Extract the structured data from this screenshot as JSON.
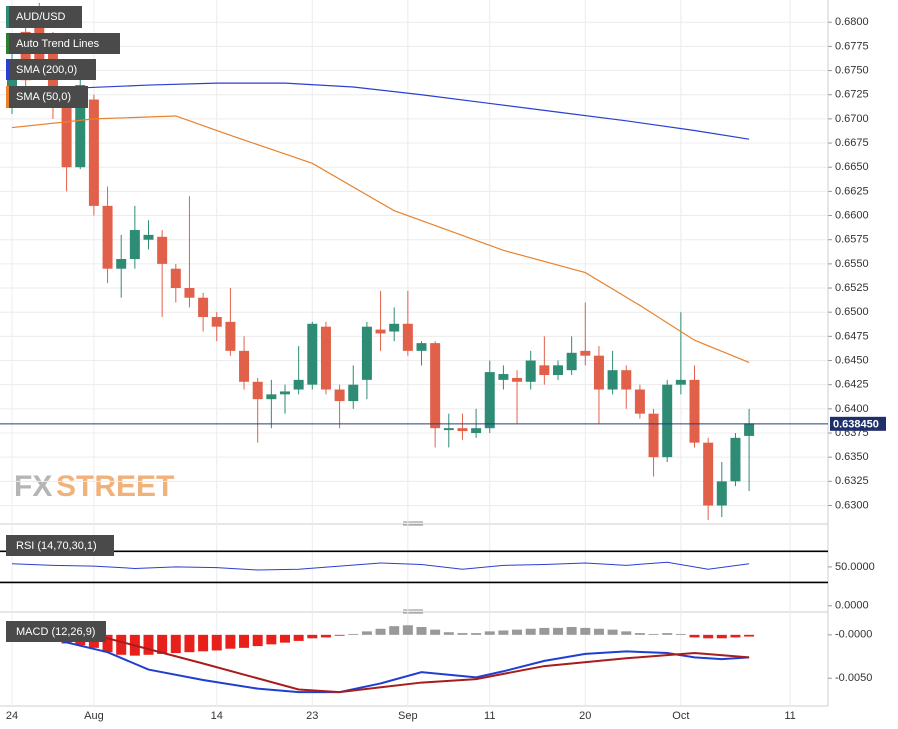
{
  "chart_data": [
    {
      "type": "candlestick",
      "name": "AUD/USD",
      "categories": [
        "24",
        null,
        null,
        null,
        null,
        null,
        "Aug",
        null,
        null,
        null,
        null,
        null,
        null,
        null,
        null,
        "14",
        null,
        null,
        null,
        null,
        null,
        null,
        "23",
        null,
        null,
        null,
        null,
        null,
        null,
        "Sep",
        null,
        null,
        null,
        null,
        null,
        "11",
        null,
        null,
        null,
        null,
        null,
        null,
        "20",
        null,
        null,
        null,
        null,
        null,
        null,
        "Oct",
        null,
        null,
        null,
        null,
        null,
        null,
        null,
        "11"
      ],
      "open": [
        0.6712,
        0.679,
        0.6795,
        0.6775,
        0.6712,
        0.665,
        0.672,
        0.661,
        0.6545,
        0.6555,
        0.6575,
        0.6578,
        0.6545,
        0.6525,
        0.6515,
        0.6495,
        0.649,
        0.646,
        0.6428,
        0.641,
        0.6415,
        0.642,
        0.6425,
        0.6485,
        0.642,
        0.6408,
        0.643,
        0.6482,
        0.648,
        0.6488,
        0.646,
        0.6468,
        0.6378,
        0.638,
        0.6375,
        0.638,
        0.643,
        0.6432,
        0.6428,
        0.6445,
        0.6435,
        0.644,
        0.646,
        0.6455,
        0.642,
        0.644,
        0.642,
        0.6395,
        0.635,
        0.6425,
        0.643,
        0.6365,
        0.63,
        0.6325,
        0.6372,
        null,
        null,
        null
      ],
      "high": [
        0.677,
        0.68,
        0.682,
        0.679,
        0.672,
        0.6745,
        0.6725,
        0.663,
        0.658,
        0.661,
        0.6595,
        0.6585,
        0.655,
        0.662,
        0.652,
        0.65,
        0.6525,
        0.6475,
        0.6432,
        0.643,
        0.6425,
        0.6465,
        0.649,
        0.649,
        0.6425,
        0.6445,
        0.649,
        0.6522,
        0.6505,
        0.6522,
        0.647,
        0.647,
        0.6395,
        0.6395,
        0.64,
        0.645,
        0.6445,
        0.644,
        0.646,
        0.6475,
        0.645,
        0.6475,
        0.651,
        0.6465,
        0.646,
        0.6445,
        0.6425,
        0.64,
        0.643,
        0.65,
        0.6445,
        0.637,
        0.6345,
        0.6375,
        0.64,
        null,
        null,
        null
      ],
      "low": [
        0.6705,
        0.673,
        0.6745,
        0.67,
        0.6625,
        0.6648,
        0.66,
        0.653,
        0.6515,
        0.6545,
        0.6565,
        0.6495,
        0.651,
        0.6505,
        0.648,
        0.647,
        0.6455,
        0.642,
        0.6365,
        0.638,
        0.6395,
        0.6415,
        0.642,
        0.6415,
        0.638,
        0.64,
        0.641,
        0.646,
        0.647,
        0.6455,
        0.6445,
        0.636,
        0.636,
        0.6368,
        0.637,
        0.6375,
        0.642,
        0.6385,
        0.642,
        0.6425,
        0.643,
        0.6435,
        0.6445,
        0.6385,
        0.6415,
        0.64,
        0.639,
        0.633,
        0.6345,
        0.6415,
        0.636,
        0.6285,
        0.6288,
        0.632,
        0.6315,
        null,
        null,
        null
      ],
      "close": [
        0.676,
        0.674,
        0.676,
        0.6712,
        0.665,
        0.6735,
        0.661,
        0.6545,
        0.6555,
        0.6585,
        0.658,
        0.655,
        0.6525,
        0.6515,
        0.6495,
        0.6485,
        0.646,
        0.6428,
        0.641,
        0.6415,
        0.6418,
        0.643,
        0.6488,
        0.642,
        0.6408,
        0.6425,
        0.6485,
        0.6478,
        0.6488,
        0.646,
        0.6468,
        0.638,
        0.638,
        0.6377,
        0.638,
        0.6438,
        0.6436,
        0.6428,
        0.645,
        0.6435,
        0.6445,
        0.6458,
        0.6455,
        0.642,
        0.644,
        0.642,
        0.6395,
        0.635,
        0.6425,
        0.643,
        0.6365,
        0.63,
        0.6325,
        0.637,
        0.6385,
        null,
        null,
        null
      ],
      "up_color": "#2e8b74",
      "down_color": "#e0604a",
      "series": [
        {
          "name": "SMA (200,0)",
          "color": "#2b3fd1",
          "x": [
            0,
            5,
            10,
            15,
            20,
            25,
            30,
            35,
            40,
            45,
            50,
            54
          ],
          "values": [
            0.673,
            0.6732,
            0.6735,
            0.6737,
            0.6737,
            0.6733,
            0.6725,
            0.6716,
            0.6707,
            0.6698,
            0.6688,
            0.6679
          ]
        },
        {
          "name": "SMA (50,0)",
          "color": "#e8822e",
          "x": [
            0,
            6,
            12,
            16,
            22,
            28,
            36,
            42,
            46,
            50,
            54
          ],
          "values": [
            0.6691,
            0.67,
            0.6703,
            0.6683,
            0.6654,
            0.6605,
            0.6564,
            0.6541,
            0.6507,
            0.6471,
            0.6448
          ]
        }
      ],
      "annotations": [
        "Auto Trend Lines"
      ],
      "last_price": {
        "value": 0.63845,
        "label": "0.638450"
      },
      "ylim": [
        0.6285,
        0.6823
      ],
      "yticks": [
        {
          "value": 0.63,
          "label": "0.6300"
        },
        {
          "value": 0.6325,
          "label": "0.6325"
        },
        {
          "value": 0.635,
          "label": "0.6350"
        },
        {
          "value": 0.6375,
          "label": "0.6375"
        },
        {
          "value": 0.64,
          "label": "0.6400"
        },
        {
          "value": 0.6425,
          "label": "0.6425"
        },
        {
          "value": 0.645,
          "label": "0.6450"
        },
        {
          "value": 0.6475,
          "label": "0.6475"
        },
        {
          "value": 0.65,
          "label": "0.6500"
        },
        {
          "value": 0.6525,
          "label": "0.6525"
        },
        {
          "value": 0.655,
          "label": "0.6550"
        },
        {
          "value": 0.6575,
          "label": "0.6575"
        },
        {
          "value": 0.66,
          "label": "0.6600"
        },
        {
          "value": 0.6625,
          "label": "0.6625"
        },
        {
          "value": 0.665,
          "label": "0.6650"
        },
        {
          "value": 0.6675,
          "label": "0.6675"
        },
        {
          "value": 0.67,
          "label": "0.6700"
        },
        {
          "value": 0.6725,
          "label": "0.6725"
        },
        {
          "value": 0.675,
          "label": "0.6750"
        },
        {
          "value": 0.6775,
          "label": "0.6775"
        },
        {
          "value": 0.68,
          "label": "0.6800"
        }
      ],
      "grid": true,
      "watermark": [
        "FX",
        "STREET"
      ]
    },
    {
      "type": "line",
      "name": "RSI (14,70,30,1)",
      "series": [
        {
          "color": "#2b3fd1",
          "x": [
            0,
            3,
            6,
            9,
            12,
            15,
            18,
            21,
            24,
            27,
            30,
            33,
            36,
            39,
            42,
            45,
            48,
            51,
            54
          ],
          "values": [
            54,
            52,
            51,
            48,
            50,
            49,
            46,
            47,
            51,
            55,
            53,
            47,
            52,
            53,
            55,
            52,
            56,
            47,
            54
          ]
        }
      ],
      "levels": [
        70,
        30
      ],
      "ylim": [
        -8,
        100
      ],
      "yticks": [
        {
          "value": 50,
          "label": "50.0000"
        },
        {
          "value": 0,
          "label": "0.0000"
        }
      ]
    },
    {
      "type": "macd",
      "name": "MACD (12,26,9)",
      "histogram": [
        -0.0001,
        -0.0003,
        -0.0005,
        -0.0008,
        -0.001,
        -0.0012,
        -0.0015,
        -0.002,
        -0.0023,
        -0.0024,
        -0.0023,
        -0.0022,
        -0.0021,
        -0.002,
        -0.0019,
        -0.0018,
        -0.0016,
        -0.0015,
        -0.0013,
        -0.0011,
        -0.0009,
        -0.0007,
        -0.0004,
        -0.0003,
        -0.0001,
        0.0001,
        0.0004,
        0.0007,
        0.001,
        0.0011,
        0.0009,
        0.0006,
        0.0003,
        0.0002,
        0.0002,
        0.0004,
        0.0005,
        0.0006,
        0.0007,
        0.0008,
        0.0008,
        0.0009,
        0.0008,
        0.0007,
        0.0006,
        0.0004,
        0.0002,
        0.0001,
        0.0002,
        0.0001,
        -0.0003,
        -0.0004,
        -0.0004,
        -0.0003,
        -0.0002
      ],
      "positive_color": "#999999",
      "negative_color": "#e8201c",
      "series": [
        {
          "color": "#1f3fd0",
          "x": [
            0,
            3,
            7,
            10,
            14,
            18,
            21,
            24,
            27,
            30,
            34,
            36,
            39,
            42,
            45,
            48,
            50,
            52,
            54
          ],
          "values": [
            0,
            -0.0005,
            -0.002,
            -0.004,
            -0.0052,
            -0.0062,
            -0.0066,
            -0.0066,
            -0.0056,
            -0.0043,
            -0.0049,
            -0.0042,
            -0.003,
            -0.0022,
            -0.0019,
            -0.0021,
            -0.0026,
            -0.0028,
            -0.0026
          ]
        },
        {
          "color": "#a81c1c",
          "x": [
            0,
            4,
            7,
            14,
            21,
            24,
            30,
            34,
            39,
            45,
            50,
            54
          ],
          "values": [
            0.0002,
            0,
            -0.0004,
            -0.0033,
            -0.0063,
            -0.0066,
            -0.0055,
            -0.0051,
            -0.0036,
            -0.0027,
            -0.0021,
            -0.0026
          ]
        }
      ],
      "ylim": [
        -0.0082,
        0.0024
      ],
      "yticks": [
        {
          "value": 0,
          "label": "-0.0000"
        },
        {
          "value": -0.005,
          "label": "-0.0050"
        }
      ]
    }
  ]
}
